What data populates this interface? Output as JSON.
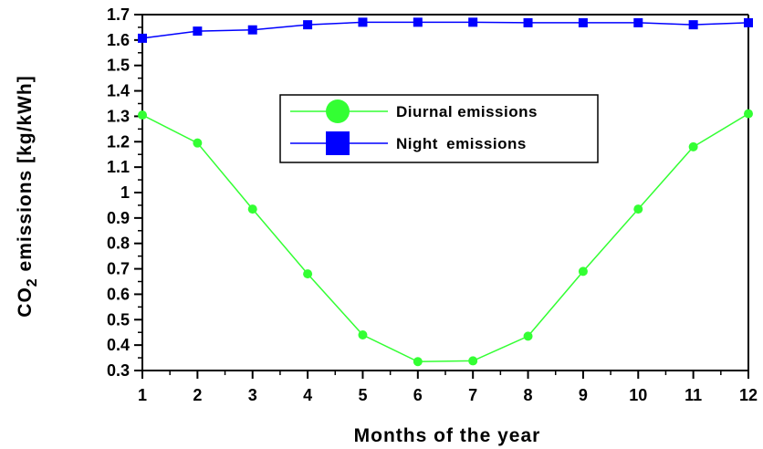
{
  "chart_data": {
    "type": "line",
    "title": "",
    "xlabel": "Months of the year",
    "ylabel": {
      "prefix": "CO",
      "subscript": "2",
      "suffix": " emissions [kg/kWh]"
    },
    "x": [
      1,
      2,
      3,
      4,
      5,
      6,
      7,
      8,
      9,
      10,
      11,
      12
    ],
    "x_ticks": [
      "1",
      "2",
      "3",
      "4",
      "5",
      "6",
      "7",
      "8",
      "9",
      "10",
      "11",
      "12"
    ],
    "ylim": [
      0.3,
      1.7
    ],
    "y_ticks": [
      "0.3",
      "0.4",
      "0.5",
      "0.6",
      "0.7",
      "0.8",
      "0.9",
      "1",
      "1.1",
      "1.2",
      "1.3",
      "1.4",
      "1.5",
      "1.6",
      "1.7"
    ],
    "grid": false,
    "legend_position": "center",
    "series": [
      {
        "name": "Diurnal emissions",
        "color": "#33ff33",
        "marker": "circle",
        "values": [
          1.305,
          1.195,
          0.935,
          0.68,
          0.44,
          0.335,
          0.338,
          0.435,
          0.69,
          0.935,
          1.18,
          1.31
        ]
      },
      {
        "name": "Night emissions",
        "color": "#0000ff",
        "marker": "square",
        "values": [
          1.607,
          1.635,
          1.64,
          1.66,
          1.67,
          1.67,
          1.67,
          1.668,
          1.668,
          1.668,
          1.66,
          1.668
        ]
      }
    ]
  }
}
